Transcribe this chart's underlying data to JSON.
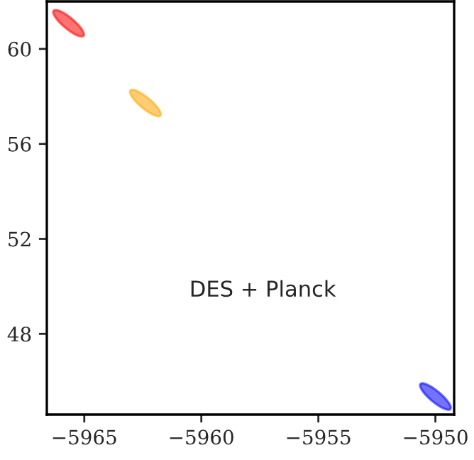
{
  "chart_data": {
    "type": "scatter",
    "x": [
      -5965.67,
      -5962.39,
      -5950.0
    ],
    "values": [
      61.08,
      57.72,
      45.36
    ],
    "colors": [
      "#ff0000",
      "#ffa500",
      "#0000ff"
    ],
    "xlim": [
      -5966.6,
      -5949.2
    ],
    "ylim": [
      44.6,
      62.0
    ],
    "xticks": [
      -5965,
      -5960,
      -5955,
      -5950
    ],
    "yticks": [
      48,
      52,
      56,
      60
    ],
    "annotations": [
      "DES + Planck"
    ],
    "grid": false,
    "legend": false
  }
}
